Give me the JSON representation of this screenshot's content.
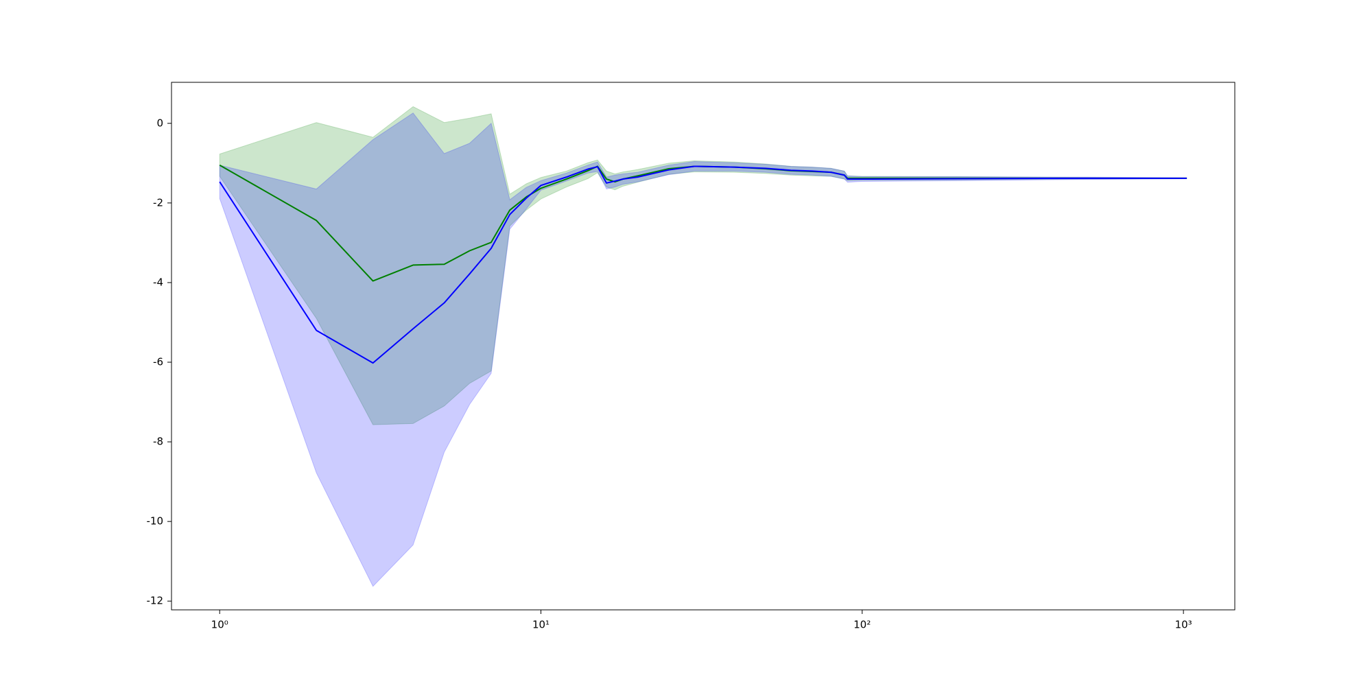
{
  "chart_data": {
    "type": "line",
    "xscale": "log",
    "x": [
      1,
      2,
      3,
      4,
      5,
      6,
      7,
      8,
      9,
      10,
      12,
      14,
      15,
      16,
      17,
      18,
      20,
      25,
      30,
      40,
      50,
      60,
      70,
      80,
      88,
      90,
      100,
      200,
      500,
      1024
    ],
    "series": [
      {
        "color": "green",
        "values": [
          -1.05,
          -2.44,
          -3.96,
          -3.56,
          -3.54,
          -3.2,
          -2.99,
          -2.18,
          -1.85,
          -1.63,
          -1.4,
          -1.19,
          -1.08,
          -1.4,
          -1.47,
          -1.4,
          -1.32,
          -1.14,
          -1.08,
          -1.1,
          -1.14,
          -1.19,
          -1.21,
          -1.23,
          -1.3,
          -1.38,
          -1.38,
          -1.38,
          -1.38,
          -1.38
        ],
        "upper": [
          -0.77,
          0.02,
          -0.35,
          0.42,
          0.02,
          0.13,
          0.24,
          -1.78,
          -1.52,
          -1.36,
          -1.2,
          -0.99,
          -0.92,
          -1.2,
          -1.27,
          -1.22,
          -1.16,
          -1.0,
          -0.94,
          -0.97,
          -1.02,
          -1.08,
          -1.1,
          -1.13,
          -1.2,
          -1.32,
          -1.33,
          -1.34,
          -1.36,
          -1.37
        ],
        "lower": [
          -1.33,
          -4.9,
          -7.57,
          -7.54,
          -7.1,
          -6.53,
          -6.22,
          -2.58,
          -2.18,
          -1.9,
          -1.6,
          -1.39,
          -1.24,
          -1.6,
          -1.67,
          -1.58,
          -1.48,
          -1.28,
          -1.22,
          -1.23,
          -1.26,
          -1.3,
          -1.32,
          -1.33,
          -1.4,
          -1.44,
          -1.43,
          -1.42,
          -1.4,
          -1.39
        ]
      },
      {
        "color": "blue",
        "values": [
          -1.47,
          -5.2,
          -6.02,
          -5.16,
          -4.51,
          -3.78,
          -3.14,
          -2.29,
          -1.88,
          -1.56,
          -1.35,
          -1.15,
          -1.09,
          -1.5,
          -1.45,
          -1.4,
          -1.35,
          -1.17,
          -1.08,
          -1.1,
          -1.13,
          -1.18,
          -1.2,
          -1.23,
          -1.3,
          -1.4,
          -1.4,
          -1.39,
          -1.38,
          -1.38
        ],
        "upper": [
          -1.05,
          -1.65,
          -0.41,
          0.26,
          -0.76,
          -0.5,
          0,
          -1.92,
          -1.61,
          -1.44,
          -1.25,
          -1.05,
          -0.97,
          -1.35,
          -1.3,
          -1.27,
          -1.23,
          -1.05,
          -0.96,
          -0.99,
          -1.03,
          -1.08,
          -1.1,
          -1.13,
          -1.2,
          -1.32,
          -1.34,
          -1.34,
          -1.35,
          -1.37
        ],
        "lower": [
          -1.89,
          -8.78,
          -11.63,
          -10.59,
          -8.26,
          -7.06,
          -6.28,
          -2.66,
          -2.15,
          -1.68,
          -1.45,
          -1.25,
          -1.21,
          -1.65,
          -1.6,
          -1.53,
          -1.47,
          -1.29,
          -1.2,
          -1.2,
          -1.23,
          -1.28,
          -1.3,
          -1.33,
          -1.4,
          -1.48,
          -1.46,
          -1.44,
          -1.41,
          -1.39
        ]
      }
    ],
    "xlim": [
      0.708,
      1445
    ],
    "ylim": [
      -12.22,
      1.03
    ],
    "xticks": [
      {
        "value": 1,
        "label": "10⁰"
      },
      {
        "value": 10,
        "label": "10¹"
      },
      {
        "value": 100,
        "label": "10²"
      },
      {
        "value": 1000,
        "label": "10³"
      }
    ],
    "yticks": [
      0,
      -2,
      -4,
      -6,
      -8,
      -10,
      -12
    ]
  }
}
